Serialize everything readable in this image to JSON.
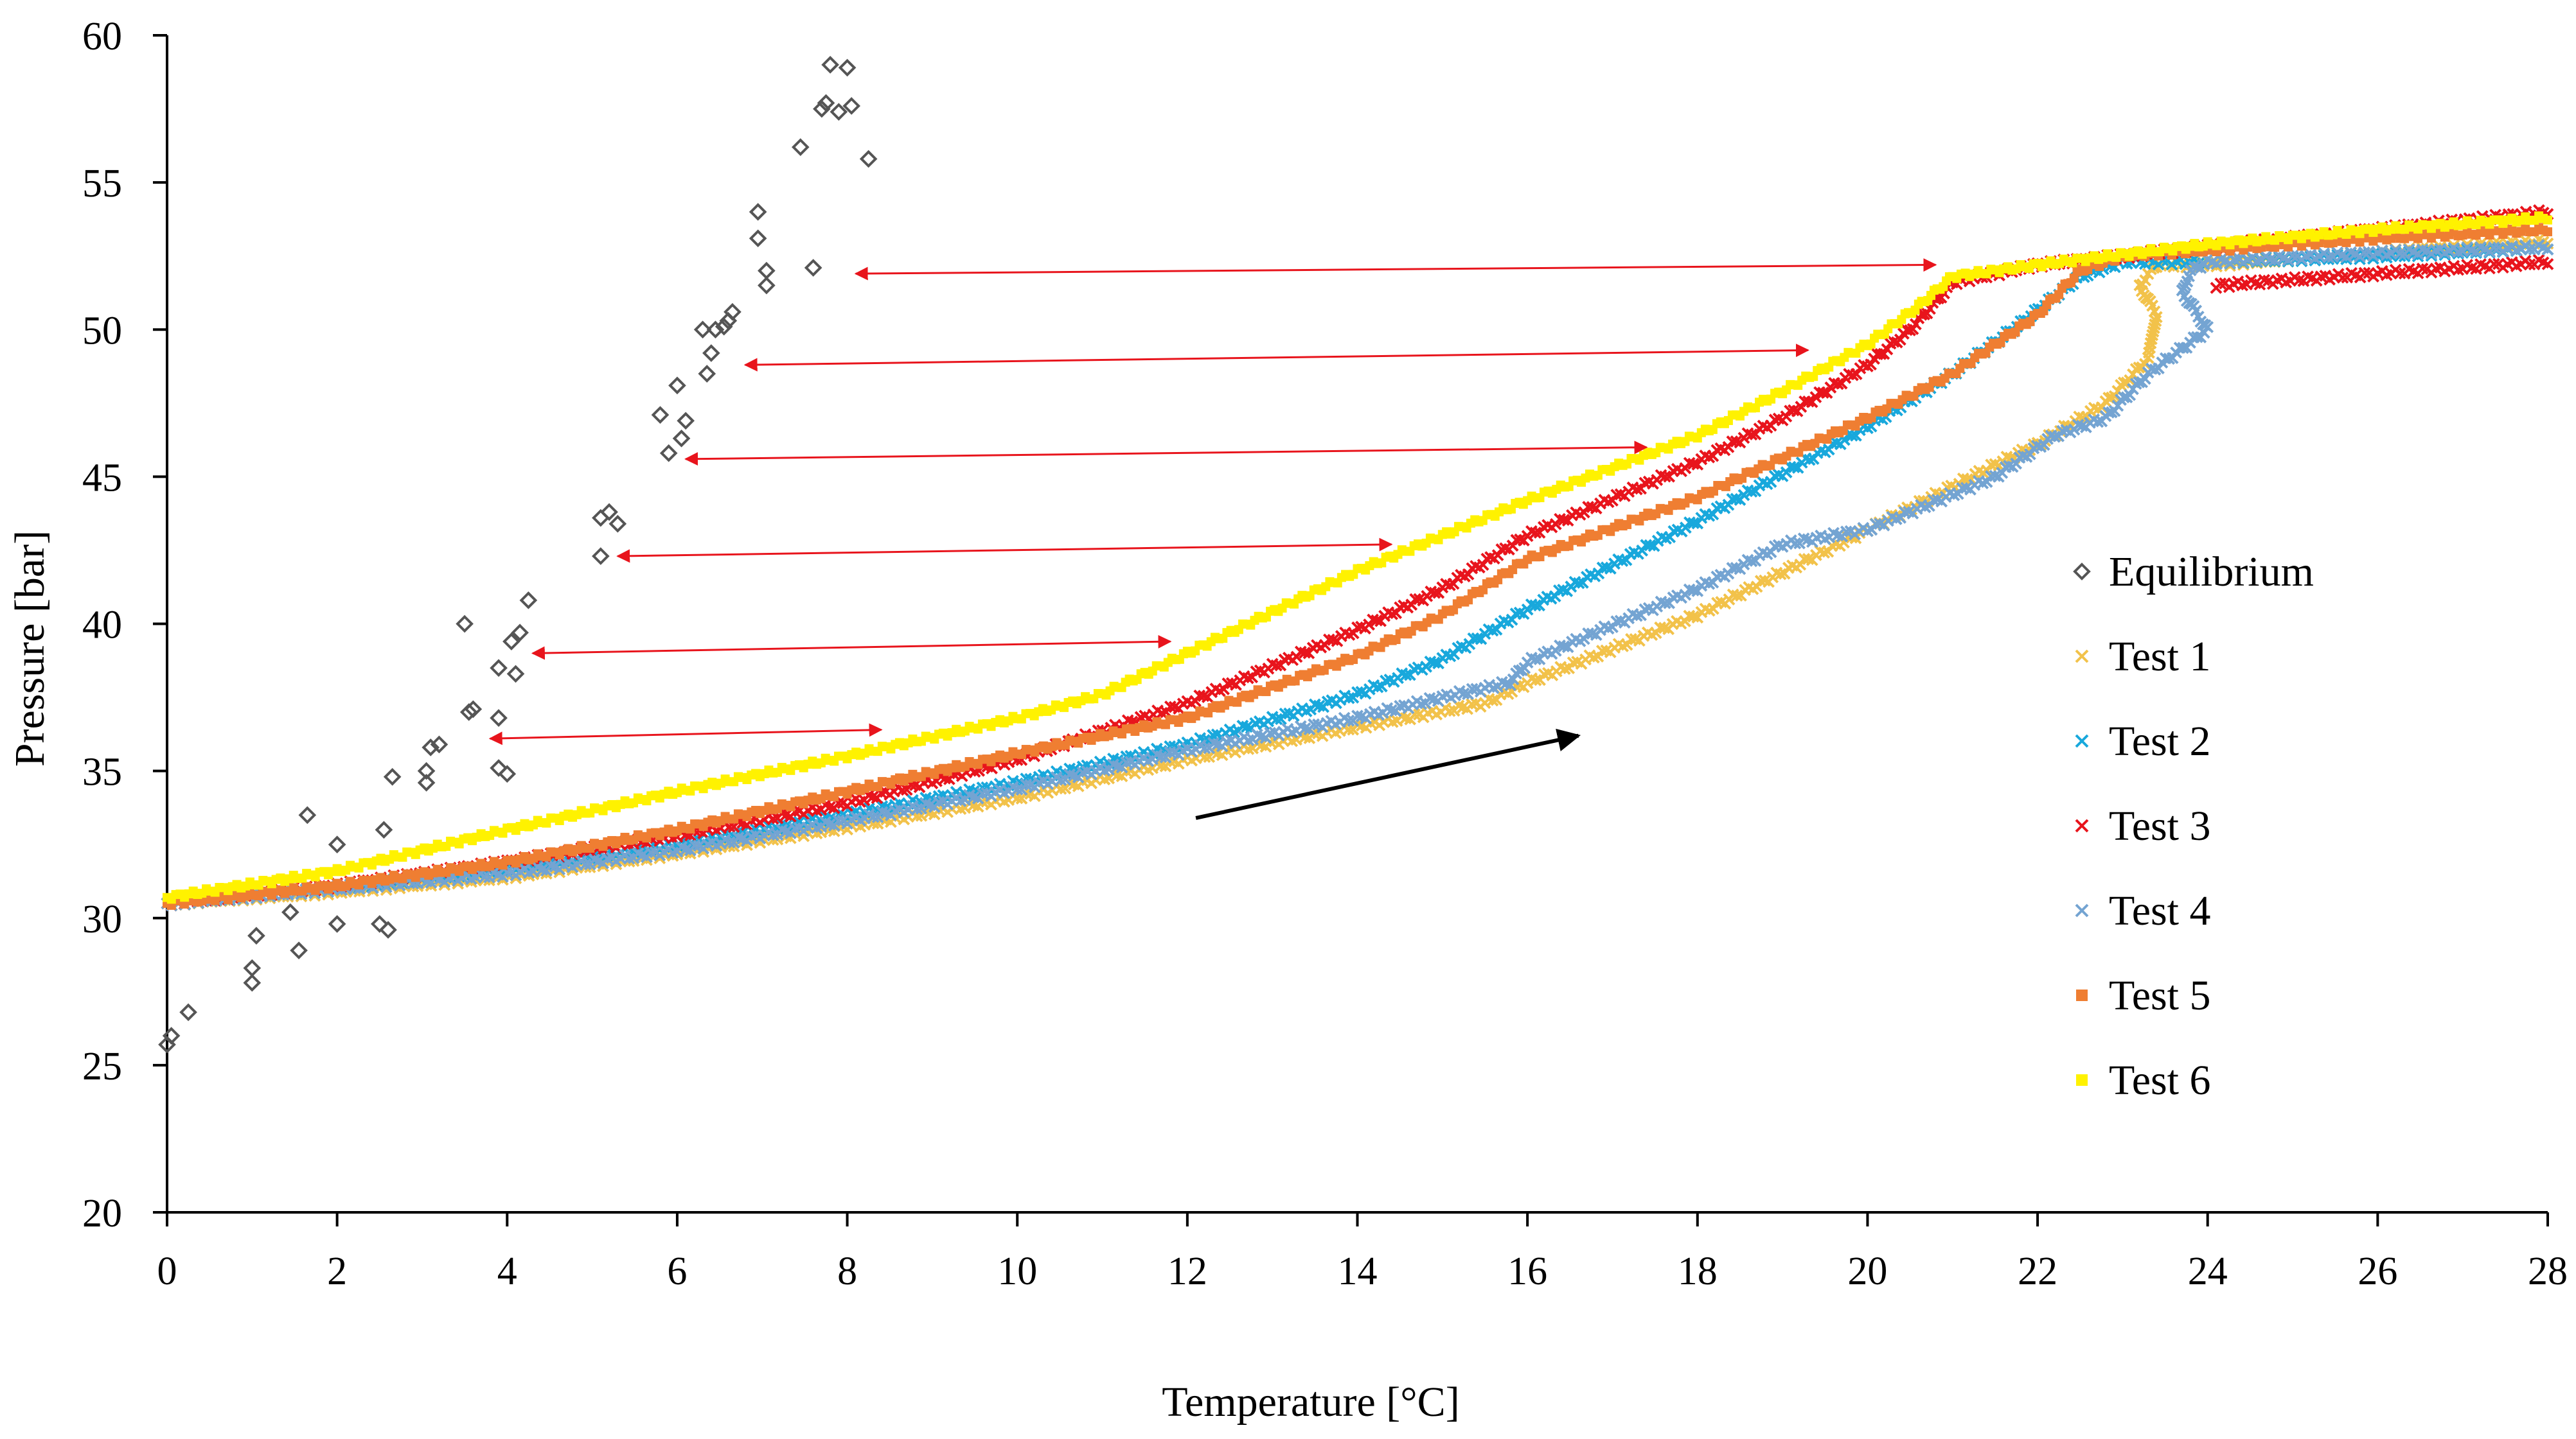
{
  "chart_data": {
    "type": "scatter",
    "title": "",
    "xlabel": "Temperature [°C]",
    "ylabel": "Pressure [bar]",
    "xlim": [
      0,
      28
    ],
    "ylim": [
      20,
      60
    ],
    "xticks": [
      "0",
      "2",
      "4",
      "6",
      "8",
      "10",
      "12",
      "14",
      "16",
      "18",
      "20",
      "22",
      "24",
      "26",
      "28"
    ],
    "yticks": [
      "20",
      "25",
      "30",
      "35",
      "40",
      "45",
      "50",
      "55",
      "60"
    ],
    "legend_position": "right",
    "series": [
      {
        "name": "Equilibrium",
        "marker": "diamond",
        "color": "#555555",
        "points": [
          [
            0.0,
            25.7
          ],
          [
            0.05,
            26.0
          ],
          [
            0.25,
            26.8
          ],
          [
            1.0,
            27.8
          ],
          [
            1.0,
            28.3
          ],
          [
            1.05,
            29.4
          ],
          [
            1.45,
            30.2
          ],
          [
            1.55,
            28.9
          ],
          [
            1.65,
            33.5
          ],
          [
            2.0,
            32.5
          ],
          [
            2.0,
            29.8
          ],
          [
            2.5,
            29.8
          ],
          [
            2.6,
            29.6
          ],
          [
            2.55,
            33.0
          ],
          [
            2.65,
            34.8
          ],
          [
            3.05,
            34.6
          ],
          [
            3.05,
            35.0
          ],
          [
            3.1,
            35.8
          ],
          [
            3.2,
            35.9
          ],
          [
            3.5,
            40.0
          ],
          [
            3.55,
            37.0
          ],
          [
            3.6,
            37.1
          ],
          [
            3.9,
            35.1
          ],
          [
            4.0,
            34.9
          ],
          [
            3.9,
            36.8
          ],
          [
            3.9,
            38.5
          ],
          [
            4.1,
            38.3
          ],
          [
            4.05,
            39.4
          ],
          [
            4.15,
            39.7
          ],
          [
            4.25,
            40.8
          ],
          [
            5.1,
            42.3
          ],
          [
            5.1,
            43.6
          ],
          [
            5.2,
            43.8
          ],
          [
            5.3,
            43.4
          ],
          [
            5.8,
            47.1
          ],
          [
            5.9,
            45.8
          ],
          [
            6.0,
            48.1
          ],
          [
            6.05,
            46.3
          ],
          [
            6.1,
            46.9
          ],
          [
            6.3,
            50.0
          ],
          [
            6.35,
            48.5
          ],
          [
            6.4,
            49.2
          ],
          [
            6.45,
            50.0
          ],
          [
            6.55,
            50.1
          ],
          [
            6.6,
            50.3
          ],
          [
            6.65,
            50.6
          ],
          [
            6.95,
            54.0
          ],
          [
            6.95,
            53.1
          ],
          [
            7.05,
            52.0
          ],
          [
            7.05,
            51.5
          ],
          [
            7.45,
            56.2
          ],
          [
            7.6,
            52.1
          ],
          [
            7.7,
            57.5
          ],
          [
            7.75,
            57.7
          ],
          [
            7.8,
            59.0
          ],
          [
            7.9,
            57.4
          ],
          [
            8.0,
            58.9
          ],
          [
            8.05,
            57.6
          ],
          [
            8.25,
            55.8
          ]
        ]
      },
      {
        "name": "Test 1",
        "marker": "x",
        "color": "#F2C24A",
        "points": [
          [
            0,
            30.5
          ],
          [
            2,
            30.9
          ],
          [
            4,
            31.4
          ],
          [
            6,
            32.2
          ],
          [
            8,
            33.1
          ],
          [
            10,
            34.1
          ],
          [
            12,
            35.4
          ],
          [
            14,
            36.5
          ],
          [
            15.5,
            37.3
          ],
          [
            16,
            38.0
          ],
          [
            18,
            40.3
          ],
          [
            20,
            43.2
          ],
          [
            21.5,
            45.4
          ],
          [
            22,
            46.1
          ],
          [
            22.8,
            47.5
          ],
          [
            23.3,
            49.0
          ],
          [
            23.4,
            50.5
          ],
          [
            23.2,
            51.5
          ],
          [
            23.4,
            52.2
          ],
          [
            24,
            52.2
          ],
          [
            26,
            52.6
          ],
          [
            28,
            53.0
          ]
        ]
      },
      {
        "name": "Test 2",
        "marker": "x",
        "color": "#18A8DC",
        "points": [
          [
            0,
            30.5
          ],
          [
            2,
            31.0
          ],
          [
            4,
            31.7
          ],
          [
            6,
            32.5
          ],
          [
            8,
            33.5
          ],
          [
            10,
            34.6
          ],
          [
            12,
            35.9
          ],
          [
            14,
            37.6
          ],
          [
            15,
            38.8
          ],
          [
            16,
            40.5
          ],
          [
            18,
            43.5
          ],
          [
            20,
            46.7
          ],
          [
            21,
            48.5
          ],
          [
            21.8,
            50.2
          ],
          [
            22.5,
            51.8
          ],
          [
            23,
            52.3
          ],
          [
            24,
            52.3
          ],
          [
            26,
            52.5
          ],
          [
            28,
            52.8
          ]
        ]
      },
      {
        "name": "Test 3",
        "marker": "x",
        "color": "#E8141C",
        "points": [
          [
            0,
            30.5
          ],
          [
            2,
            31.1
          ],
          [
            4,
            31.9
          ],
          [
            6,
            32.8
          ],
          [
            8,
            33.9
          ],
          [
            10,
            35.4
          ],
          [
            12,
            37.3
          ],
          [
            14,
            39.8
          ],
          [
            15,
            41.2
          ],
          [
            16,
            43.0
          ],
          [
            18,
            45.5
          ],
          [
            19,
            47.0
          ],
          [
            20,
            48.8
          ],
          [
            20.5,
            50.0
          ],
          [
            21,
            51.6
          ],
          [
            22,
            52.2
          ],
          [
            24,
            52.8
          ],
          [
            26,
            53.4
          ],
          [
            28,
            54.0
          ],
          [
            24.1,
            51.5
          ],
          [
            26,
            51.9
          ],
          [
            28,
            52.3
          ]
        ]
      },
      {
        "name": "Test 4",
        "marker": "x",
        "color": "#74A4D2",
        "points": [
          [
            0,
            30.5
          ],
          [
            2,
            31.0
          ],
          [
            4,
            31.5
          ],
          [
            6,
            32.3
          ],
          [
            8,
            33.3
          ],
          [
            10,
            34.4
          ],
          [
            12,
            35.7
          ],
          [
            14,
            36.8
          ],
          [
            15,
            37.5
          ],
          [
            15.8,
            38.0
          ],
          [
            16,
            38.7
          ],
          [
            18,
            41.2
          ],
          [
            19,
            42.7
          ],
          [
            20,
            43.2
          ],
          [
            21.5,
            45.0
          ],
          [
            22.2,
            46.4
          ],
          [
            22.8,
            47.0
          ],
          [
            23.3,
            48.5
          ],
          [
            24,
            50.0
          ],
          [
            23.7,
            51.3
          ],
          [
            23.8,
            52.0
          ],
          [
            24,
            52.3
          ],
          [
            26,
            52.6
          ],
          [
            28,
            52.8
          ]
        ]
      },
      {
        "name": "Test 5",
        "marker": "square",
        "color": "#EF7E32",
        "points": [
          [
            0,
            30.5
          ],
          [
            2,
            31.1
          ],
          [
            4,
            31.9
          ],
          [
            6,
            33.0
          ],
          [
            8,
            34.3
          ],
          [
            10,
            35.6
          ],
          [
            12,
            36.8
          ],
          [
            14,
            38.9
          ],
          [
            15,
            40.3
          ],
          [
            16,
            42.2
          ],
          [
            18,
            44.3
          ],
          [
            20,
            47.0
          ],
          [
            21,
            48.5
          ],
          [
            22,
            50.5
          ],
          [
            22.5,
            52.0
          ],
          [
            23,
            52.5
          ],
          [
            24,
            52.7
          ],
          [
            26,
            53.1
          ],
          [
            28,
            53.4
          ]
        ]
      },
      {
        "name": "Test 6",
        "marker": "square",
        "color": "#FFF200",
        "points": [
          [
            0,
            30.7
          ],
          [
            2,
            31.6
          ],
          [
            4,
            33.0
          ],
          [
            6,
            34.3
          ],
          [
            8,
            35.5
          ],
          [
            10,
            36.8
          ],
          [
            11,
            37.6
          ],
          [
            12,
            39.0
          ],
          [
            14,
            41.8
          ],
          [
            15,
            43.0
          ],
          [
            16,
            44.2
          ],
          [
            18,
            46.4
          ],
          [
            19,
            47.9
          ],
          [
            20,
            49.5
          ],
          [
            20.6,
            50.8
          ],
          [
            21,
            51.8
          ],
          [
            22,
            52.2
          ],
          [
            24,
            52.9
          ],
          [
            26,
            53.4
          ],
          [
            28,
            53.8
          ]
        ]
      }
    ],
    "annotations": [
      {
        "type": "double-arrow",
        "color": "#E8141C",
        "from": [
          8.1,
          51.9
        ],
        "to": [
          20.8,
          52.2
        ]
      },
      {
        "type": "double-arrow",
        "color": "#E8141C",
        "from": [
          6.8,
          48.8
        ],
        "to": [
          19.3,
          49.3
        ]
      },
      {
        "type": "double-arrow",
        "color": "#E8141C",
        "from": [
          6.1,
          45.6
        ],
        "to": [
          17.4,
          46.0
        ]
      },
      {
        "type": "double-arrow",
        "color": "#E8141C",
        "from": [
          5.3,
          42.3
        ],
        "to": [
          14.4,
          42.7
        ]
      },
      {
        "type": "double-arrow",
        "color": "#E8141C",
        "from": [
          4.3,
          39.0
        ],
        "to": [
          11.8,
          39.4
        ]
      },
      {
        "type": "double-arrow",
        "color": "#E8141C",
        "from": [
          3.8,
          36.1
        ],
        "to": [
          8.4,
          36.4
        ]
      },
      {
        "type": "arrow",
        "color": "#000000",
        "from": [
          12.1,
          33.4
        ],
        "to": [
          16.6,
          36.2
        ]
      }
    ]
  }
}
